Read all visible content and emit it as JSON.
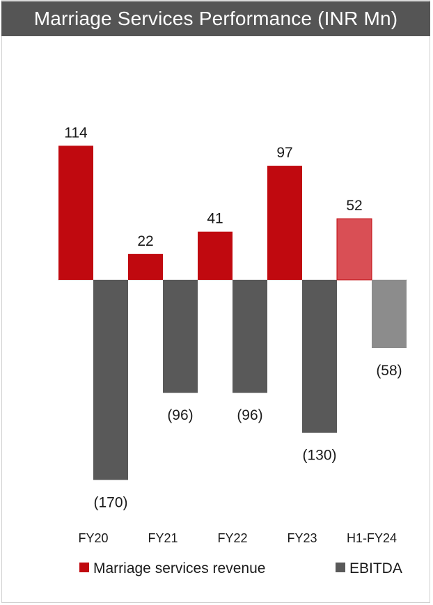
{
  "title": "Marriage Services Performance (INR Mn)",
  "colors": {
    "revenue": "#c0090f",
    "revenue_highlight": "#d94f55",
    "ebitda": "#595959",
    "ebitda_highlight": "#8c8c8c",
    "title_bar": "#555555"
  },
  "chart_data": {
    "type": "bar",
    "categories": [
      "FY20",
      "FY21",
      "FY22",
      "FY23",
      "H1-FY24"
    ],
    "series": [
      {
        "name": "Marriage services revenue",
        "values": [
          114,
          22,
          41,
          97,
          52
        ],
        "labels": [
          "114",
          "22",
          "41",
          "97",
          "52"
        ]
      },
      {
        "name": "EBITDA",
        "values": [
          -170,
          -96,
          -96,
          -130,
          -58
        ],
        "labels": [
          "(170)",
          "(96)",
          "(96)",
          "(130)",
          "(58)"
        ]
      }
    ],
    "highlight_category": "H1-FY24",
    "legend_position": "bottom",
    "grid": false
  }
}
